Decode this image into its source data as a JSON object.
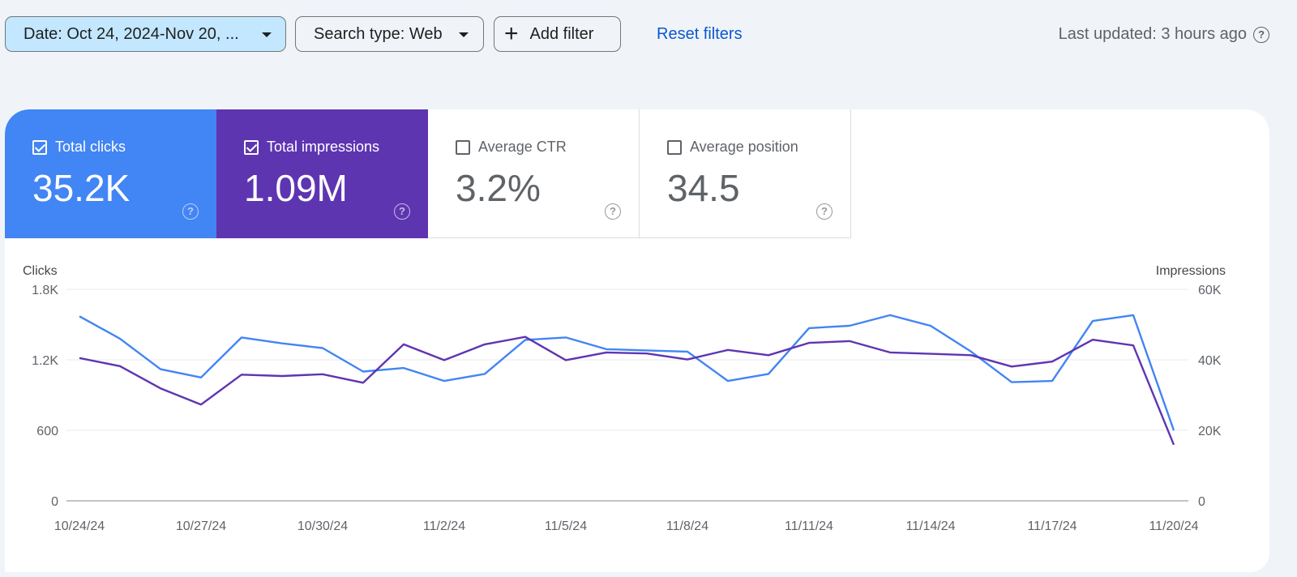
{
  "toolbar": {
    "date_label": "Date: Oct 24, 2024-Nov 20, ...",
    "search_type_label": "Search type: Web",
    "add_filter_label": "Add filter",
    "reset_label": "Reset filters",
    "last_updated": "Last updated: 3 hours ago"
  },
  "metrics": [
    {
      "label": "Total clicks",
      "value": "35.2K",
      "checked": true,
      "color": "#4285f4"
    },
    {
      "label": "Total impressions",
      "value": "1.09M",
      "checked": true,
      "color": "#5e35b1"
    },
    {
      "label": "Average CTR",
      "value": "3.2%",
      "checked": false
    },
    {
      "label": "Average position",
      "value": "34.5",
      "checked": false
    }
  ],
  "chart_data": {
    "type": "line",
    "left_axis_label": "Clicks",
    "right_axis_label": "Impressions",
    "left_ticks": [
      "0",
      "600",
      "1.2K",
      "1.8K"
    ],
    "right_ticks": [
      "0",
      "20K",
      "40K",
      "60K"
    ],
    "left_range": [
      0,
      1800
    ],
    "right_range": [
      0,
      60000
    ],
    "x_tick_labels": [
      "10/24/24",
      "10/27/24",
      "10/30/24",
      "11/2/24",
      "11/5/24",
      "11/8/24",
      "11/11/24",
      "11/14/24",
      "11/17/24",
      "11/20/24"
    ],
    "x_tick_indices": [
      0,
      3,
      6,
      9,
      12,
      15,
      18,
      21,
      24,
      27
    ],
    "series": [
      {
        "name": "Total clicks",
        "axis": "left",
        "color": "#4285f4",
        "values": [
          1570,
          1380,
          1120,
          1050,
          1390,
          1340,
          1300,
          1100,
          1130,
          1020,
          1080,
          1370,
          1390,
          1290,
          1280,
          1270,
          1020,
          1080,
          1470,
          1490,
          1580,
          1490,
          1270,
          1010,
          1020,
          1530,
          1580,
          600
        ]
      },
      {
        "name": "Total impressions",
        "axis": "right",
        "color": "#5e35b1",
        "values": [
          40500,
          38200,
          31900,
          27300,
          35800,
          35400,
          35900,
          33500,
          44400,
          39900,
          44400,
          46500,
          39900,
          42100,
          41800,
          40100,
          42800,
          41300,
          44800,
          45300,
          42100,
          41700,
          41300,
          38100,
          39500,
          45700,
          44100,
          15900
        ]
      }
    ]
  }
}
